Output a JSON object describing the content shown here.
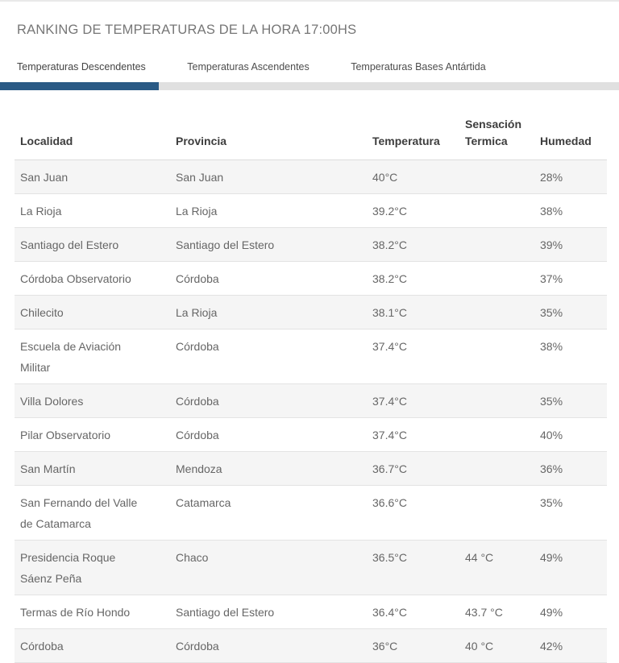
{
  "page": {
    "title": "RANKING DE TEMPERATURAS DE LA HORA 17:00HS"
  },
  "tabs": [
    {
      "label": "Temperaturas Descendentes",
      "active": true
    },
    {
      "label": "Temperaturas Ascendentes",
      "active": false
    },
    {
      "label": "Temperaturas Bases Antártida",
      "active": false
    }
  ],
  "table": {
    "columns": [
      {
        "key": "localidad",
        "label": "Localidad"
      },
      {
        "key": "provincia",
        "label": "Provincia"
      },
      {
        "key": "temperatura",
        "label": "Temperatura"
      },
      {
        "key": "sensacion",
        "label": "Sensación Termica"
      },
      {
        "key": "humedad",
        "label": "Humedad"
      }
    ],
    "rows": [
      {
        "localidad": "San Juan",
        "provincia": "San Juan",
        "temperatura": "40°C",
        "sensacion": "",
        "humedad": "28%"
      },
      {
        "localidad": "La Rioja",
        "provincia": "La Rioja",
        "temperatura": "39.2°C",
        "sensacion": "",
        "humedad": "38%"
      },
      {
        "localidad": "Santiago del Estero",
        "provincia": "Santiago del Estero",
        "temperatura": "38.2°C",
        "sensacion": "",
        "humedad": "39%"
      },
      {
        "localidad": "Córdoba Observatorio",
        "provincia": "Córdoba",
        "temperatura": "38.2°C",
        "sensacion": "",
        "humedad": "37%"
      },
      {
        "localidad": "Chilecito",
        "provincia": "La Rioja",
        "temperatura": "38.1°C",
        "sensacion": "",
        "humedad": "35%"
      },
      {
        "localidad": "Escuela de Aviación Militar",
        "provincia": "Córdoba",
        "temperatura": "37.4°C",
        "sensacion": "",
        "humedad": "38%"
      },
      {
        "localidad": "Villa Dolores",
        "provincia": "Córdoba",
        "temperatura": "37.4°C",
        "sensacion": "",
        "humedad": "35%"
      },
      {
        "localidad": "Pilar Observatorio",
        "provincia": "Córdoba",
        "temperatura": "37.4°C",
        "sensacion": "",
        "humedad": "40%"
      },
      {
        "localidad": "San Martín",
        "provincia": "Mendoza",
        "temperatura": "36.7°C",
        "sensacion": "",
        "humedad": "36%"
      },
      {
        "localidad": "San Fernando del Valle de Catamarca",
        "provincia": "Catamarca",
        "temperatura": "36.6°C",
        "sensacion": "",
        "humedad": "35%"
      },
      {
        "localidad": "Presidencia Roque Sáenz Peña",
        "provincia": "Chaco",
        "temperatura": "36.5°C",
        "sensacion": "44 °C",
        "humedad": "49%"
      },
      {
        "localidad": "Termas de Río Hondo",
        "provincia": "Santiago del Estero",
        "temperatura": "36.4°C",
        "sensacion": "43.7 °C",
        "humedad": "49%"
      },
      {
        "localidad": "Córdoba",
        "provincia": "Córdoba",
        "temperatura": "36°C",
        "sensacion": "40 °C",
        "humedad": "42%"
      }
    ]
  },
  "colors": {
    "accent_blue": "#2a5a85",
    "tab_track_gray": "#e0e0e0",
    "zebra_gray": "#f5f5f5",
    "divider_gray": "#e9e9e9"
  }
}
